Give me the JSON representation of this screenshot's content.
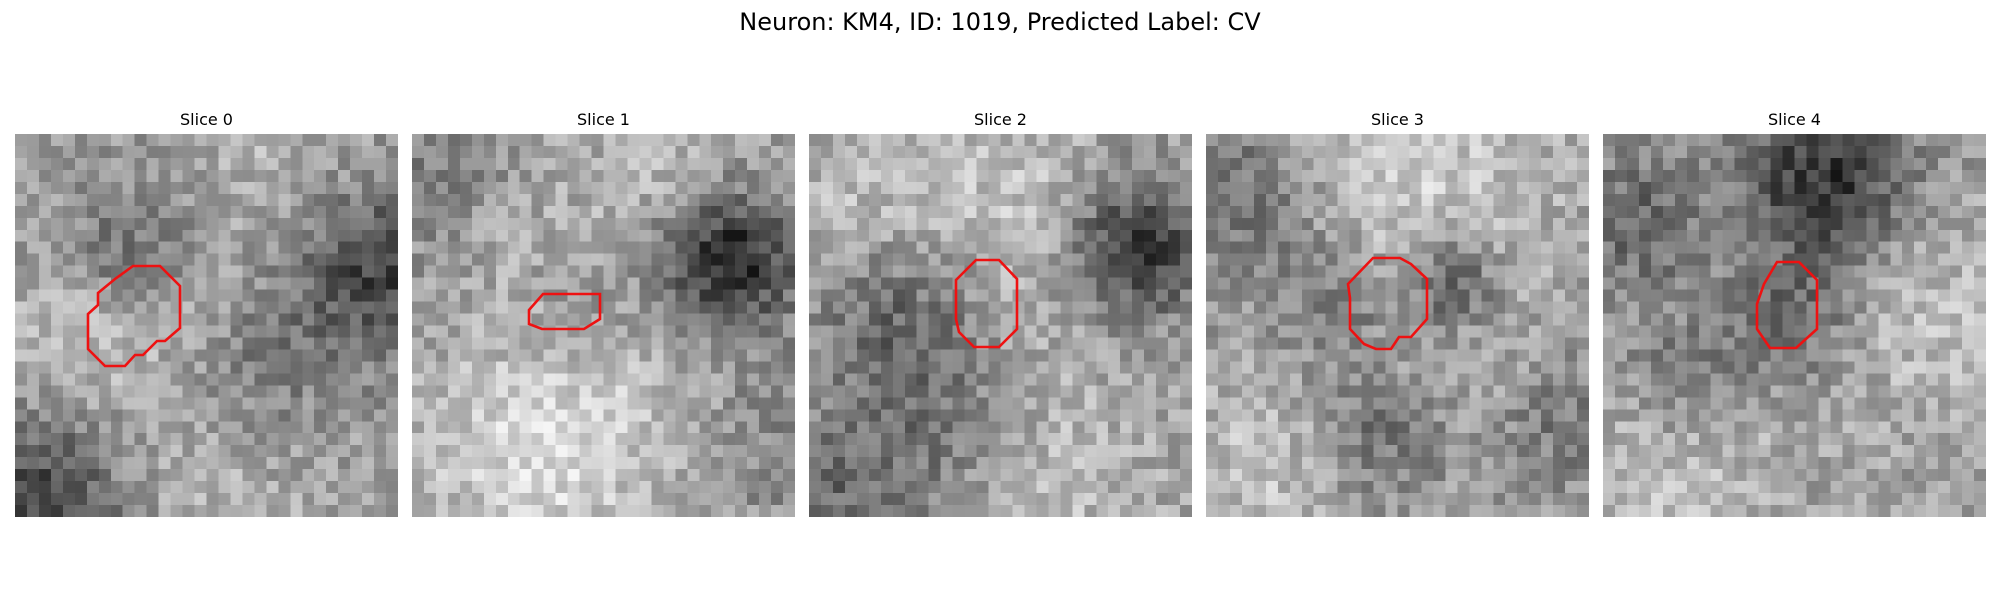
{
  "title": "Neuron: KM4, ID: 1019, Predicted Label: CV",
  "panels": [
    {
      "label": "Slice 0"
    },
    {
      "label": "Slice 1"
    },
    {
      "label": "Slice 2"
    },
    {
      "label": "Slice 3"
    },
    {
      "label": "Slice 4"
    }
  ],
  "colors": {
    "contour": "#ee1111",
    "background": "#ffffff"
  }
}
